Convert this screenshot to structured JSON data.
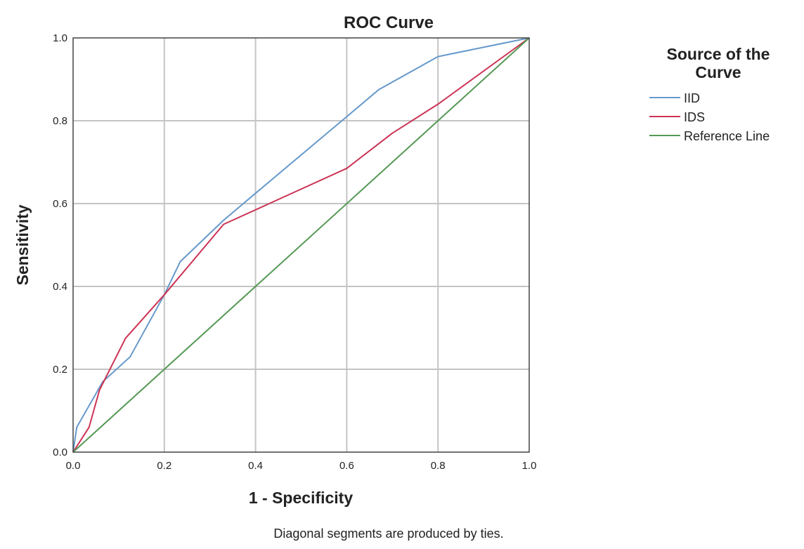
{
  "chart_data": {
    "type": "line",
    "title": "ROC Curve",
    "xlabel": "1 - Specificity",
    "ylabel": "Sensitivity",
    "xlim": [
      0,
      1
    ],
    "ylim": [
      0,
      1
    ],
    "x_ticks": [
      "0.0",
      "0.2",
      "0.4",
      "0.6",
      "0.8",
      "1.0"
    ],
    "y_ticks": [
      "0.0",
      "0.2",
      "0.4",
      "0.6",
      "0.8",
      "1.0"
    ],
    "grid": true,
    "legend": {
      "title_lines": [
        "Source of the",
        "Curve"
      ],
      "placement": "right",
      "entries": [
        "IID",
        "IDS",
        "Reference Line"
      ]
    },
    "footnote": "Diagonal segments are produced by ties.",
    "series": [
      {
        "name": "IID",
        "color": "#6699cc",
        "points": [
          [
            0.0,
            0.0
          ],
          [
            0.008,
            0.06
          ],
          [
            0.065,
            0.17
          ],
          [
            0.125,
            0.23
          ],
          [
            0.2,
            0.38
          ],
          [
            0.235,
            0.46
          ],
          [
            0.33,
            0.56
          ],
          [
            0.4,
            0.625
          ],
          [
            0.6,
            0.81
          ],
          [
            0.67,
            0.875
          ],
          [
            0.8,
            0.955
          ],
          [
            1.0,
            1.0
          ]
        ]
      },
      {
        "name": "IDS",
        "color": "#cc3355",
        "points": [
          [
            0.0,
            0.0
          ],
          [
            0.035,
            0.06
          ],
          [
            0.058,
            0.15
          ],
          [
            0.115,
            0.275
          ],
          [
            0.2,
            0.38
          ],
          [
            0.33,
            0.55
          ],
          [
            0.6,
            0.685
          ],
          [
            0.7,
            0.77
          ],
          [
            0.8,
            0.84
          ],
          [
            1.0,
            1.0
          ]
        ]
      },
      {
        "name": "Reference Line",
        "color": "#559955",
        "points": [
          [
            0.0,
            0.0
          ],
          [
            1.0,
            1.0
          ]
        ]
      }
    ]
  }
}
